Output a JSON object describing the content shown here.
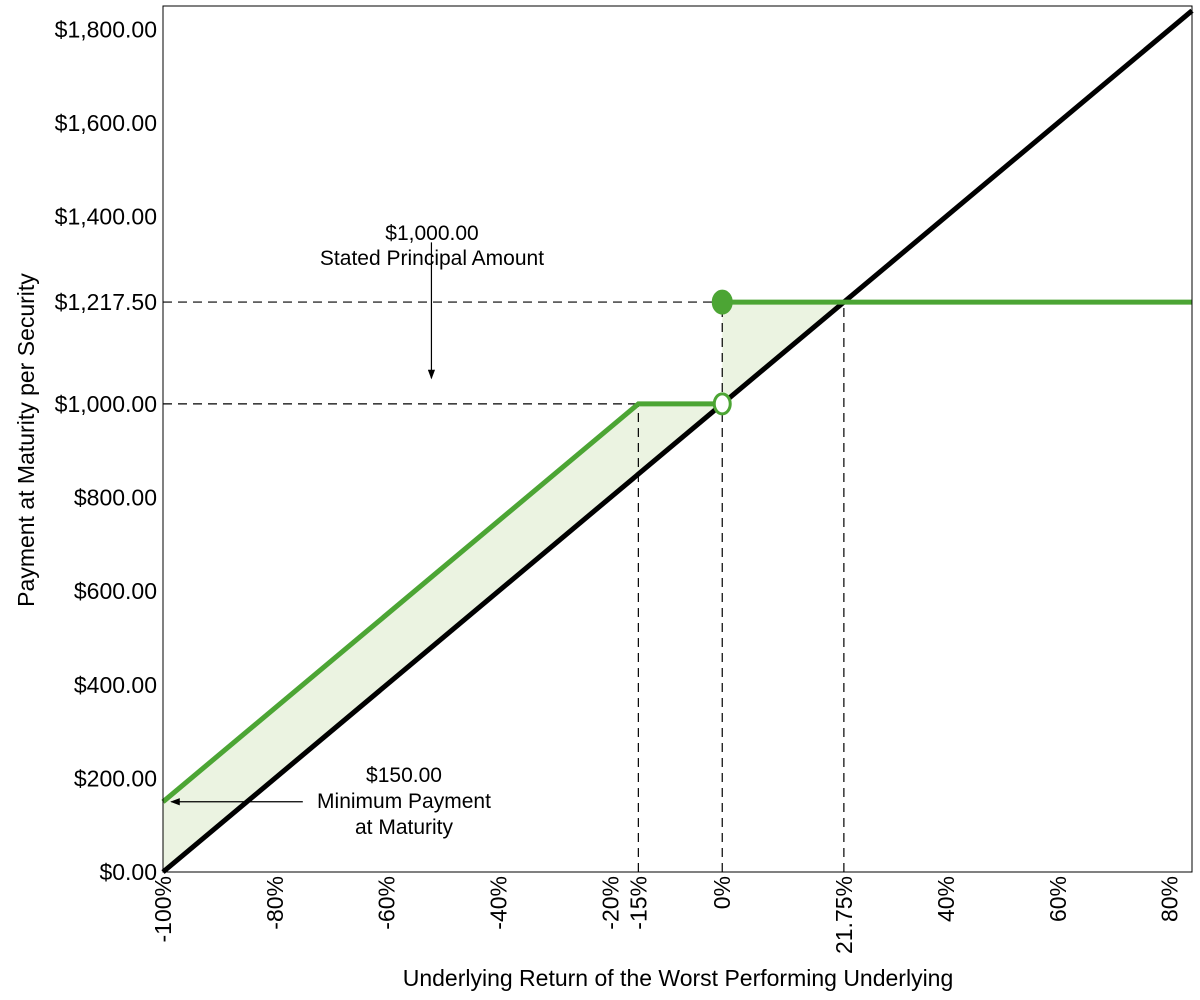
{
  "chart_data": {
    "type": "line",
    "title": "",
    "xlabel": "Underlying Return of the Worst Performing Underlying",
    "ylabel": "Payment at Maturity per Security",
    "xlim": [
      -100,
      84
    ],
    "ylim": [
      0,
      1850
    ],
    "x_ticks": [
      {
        "value": -100,
        "label": "-100%"
      },
      {
        "value": -80,
        "label": "-80%"
      },
      {
        "value": -60,
        "label": "-60%"
      },
      {
        "value": -40,
        "label": "-40%"
      },
      {
        "value": -20,
        "label": "-20%"
      },
      {
        "value": -15,
        "label": "-15%"
      },
      {
        "value": 0,
        "label": "0%"
      },
      {
        "value": 21.75,
        "label": "21.75%"
      },
      {
        "value": 40,
        "label": "40%"
      },
      {
        "value": 60,
        "label": "60%"
      },
      {
        "value": 80,
        "label": "80%"
      }
    ],
    "y_ticks": [
      {
        "value": 0,
        "label": "$0.00"
      },
      {
        "value": 200,
        "label": "$200.00"
      },
      {
        "value": 400,
        "label": "$400.00"
      },
      {
        "value": 600,
        "label": "$600.00"
      },
      {
        "value": 800,
        "label": "$800.00"
      },
      {
        "value": 1000,
        "label": "$1,000.00"
      },
      {
        "value": 1217.5,
        "label": "$1,217.50"
      },
      {
        "value": 1400,
        "label": "$1,400.00"
      },
      {
        "value": 1600,
        "label": "$1,600.00"
      },
      {
        "value": 1800,
        "label": "$1,800.00"
      }
    ],
    "series": [
      {
        "color": "#000000",
        "points": [
          [
            -100,
            0
          ],
          [
            84,
            1840
          ]
        ]
      },
      {
        "color": "#4ca534",
        "points": [
          [
            -100,
            150
          ],
          [
            -15,
            1000
          ],
          [
            0,
            1000
          ]
        ]
      },
      {
        "color": "#4ca534",
        "points": [
          [
            0,
            1217.5
          ],
          [
            84,
            1217.5
          ]
        ]
      }
    ],
    "markers": [
      {
        "x": 0,
        "y": 1217.5,
        "style": "filled",
        "color": "#4ca534"
      },
      {
        "x": 0,
        "y": 1000,
        "style": "open",
        "color": "#4ca534"
      }
    ],
    "shaded_region": {
      "color": "#ebf3e1",
      "upper": [
        [
          -100,
          150
        ],
        [
          -15,
          1000
        ],
        [
          0,
          1000
        ],
        [
          0,
          1217.5
        ],
        [
          21.75,
          1217.5
        ]
      ],
      "lower": [
        [
          -100,
          0
        ],
        [
          21.75,
          1217.5
        ]
      ]
    },
    "reference_lines": [
      {
        "orientation": "horizontal",
        "y": 1217.5,
        "x_from": -100,
        "x_to": 0,
        "style": "dashed"
      },
      {
        "orientation": "horizontal",
        "y": 1000,
        "x_from": -100,
        "x_to": 0,
        "style": "dashed"
      },
      {
        "orientation": "vertical",
        "x": -15,
        "y_from": 0,
        "y_to": 1000,
        "style": "dashed"
      },
      {
        "orientation": "vertical",
        "x": 0,
        "y_from": 0,
        "y_to": 1217.5,
        "style": "dashed"
      },
      {
        "orientation": "vertical",
        "x": 21.75,
        "y_from": 0,
        "y_to": 1217.5,
        "style": "dashed"
      }
    ],
    "annotations": [
      {
        "lines": [
          "$1,000.00",
          "Stated Principal Amount"
        ],
        "arrow_from": [
          -52,
          1345
        ],
        "arrow_to": [
          -52,
          1055
        ]
      },
      {
        "lines": [
          "$150.00",
          "Minimum Payment",
          "at Maturity"
        ],
        "arrow_from": [
          -75,
          150
        ],
        "arrow_to": [
          -98.5,
          150
        ]
      }
    ],
    "grid": false,
    "legend": "none"
  }
}
